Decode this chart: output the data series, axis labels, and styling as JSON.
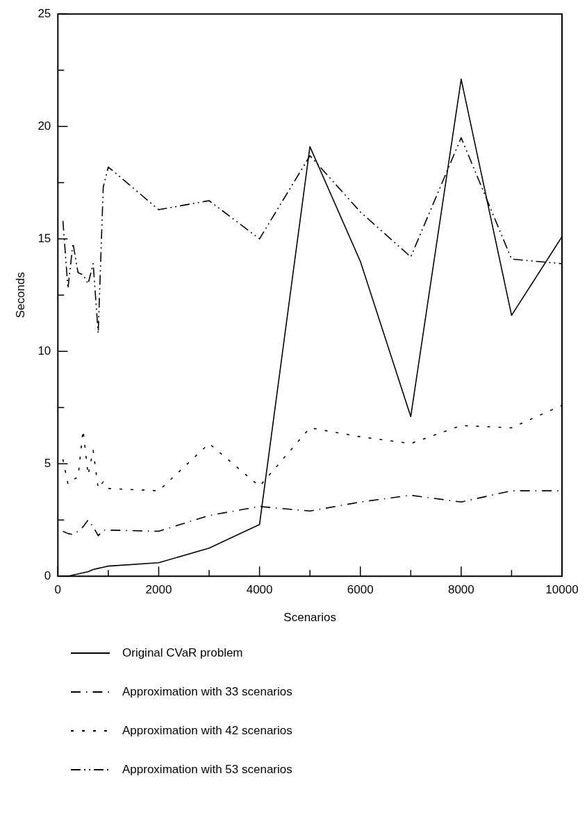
{
  "chart_data": {
    "type": "line",
    "xlabel": "Scenarios",
    "ylabel": "Seconds",
    "x": [
      100,
      200,
      300,
      400,
      500,
      600,
      700,
      800,
      900,
      1000,
      2000,
      3000,
      4000,
      5000,
      6000,
      7000,
      8000,
      9000,
      10000
    ],
    "series": [
      {
        "name": "Original CVaR problem",
        "color": "#000000",
        "line_style": "solid",
        "values": [
          0,
          0,
          0.05,
          0.1,
          0.15,
          0.2,
          0.3,
          0.35,
          0.4,
          0.45,
          0.6,
          1.25,
          2.3,
          19.1,
          14.0,
          7.1,
          22.1,
          11.6,
          15.1
        ]
      },
      {
        "name": "Approximation with 33 scenarios",
        "color": "#000000",
        "line_style": "dashed",
        "values": [
          2.0,
          1.9,
          1.85,
          2.0,
          2.2,
          2.5,
          2.2,
          1.8,
          2.05,
          2.05,
          2.0,
          2.7,
          3.1,
          2.9,
          3.3,
          3.6,
          3.3,
          3.8,
          3.8
        ]
      },
      {
        "name": "Approximation with 42 scenarios",
        "color": "#000000",
        "line_style": "dotted",
        "values": [
          5.2,
          4.1,
          4.3,
          4.4,
          6.5,
          4.5,
          5.6,
          3.9,
          4.2,
          3.9,
          3.8,
          5.9,
          4.0,
          6.6,
          6.2,
          5.9,
          6.7,
          6.6,
          7.6
        ]
      },
      {
        "name": "Approximation with 53 scenarios",
        "color": "#000000",
        "line_style": "dashdot",
        "values": [
          15.8,
          12.8,
          14.8,
          13.5,
          13.4,
          13.0,
          13.9,
          10.8,
          17.3,
          18.2,
          16.3,
          16.7,
          15.0,
          18.7,
          16.2,
          14.2,
          19.5,
          14.1,
          13.9
        ]
      }
    ],
    "xlim": [
      0,
      10000
    ],
    "xticks": [
      0,
      {
        "value": 1000,
        "label": null
      },
      2000,
      {
        "value": 3000,
        "label": null
      },
      4000,
      {
        "value": 5000,
        "label": null
      },
      6000,
      {
        "value": 7000,
        "label": null
      },
      8000,
      {
        "value": 9000,
        "label": null
      },
      10000
    ],
    "ylim": [
      0,
      25
    ],
    "yticks": [
      0,
      {
        "value": 2.5,
        "label": null
      },
      5,
      {
        "value": 7.5,
        "label": null
      },
      10,
      {
        "value": 12.5,
        "label": null
      },
      15,
      {
        "value": 17.5,
        "label": null
      },
      20,
      {
        "value": 22.5,
        "label": null
      },
      25
    ],
    "grid": false,
    "legend": "bottom",
    "marker": "none"
  }
}
